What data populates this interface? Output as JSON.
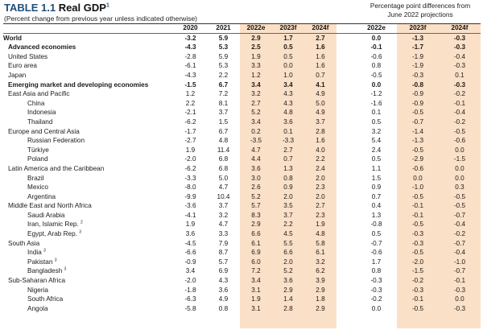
{
  "table": {
    "number": "TABLE 1.1",
    "name": "Real GDP",
    "title_sup": "1",
    "subtitle": "(Percent change from previous year unless indicated otherwise)",
    "right_note_line1": "Percentage point differences from",
    "right_note_line2": "June 2022 projections",
    "columns": [
      "2020",
      "2021",
      "2022e",
      "2023f",
      "2024f"
    ],
    "diff_columns": [
      "2022e",
      "2023f",
      "2024f"
    ]
  },
  "rows": [
    {
      "label": "World",
      "level": 0,
      "bold": true,
      "sup": "",
      "v": [
        "-3.2",
        "5.9",
        "2.9",
        "1.7",
        "2.7"
      ],
      "d": [
        "0.0",
        "-1.3",
        "-0.3"
      ]
    },
    {
      "label": "Advanced economies",
      "level": 1,
      "bold": true,
      "sup": "",
      "v": [
        "-4.3",
        "5.3",
        "2.5",
        "0.5",
        "1.6"
      ],
      "d": [
        "-0.1",
        "-1.7",
        "-0.3"
      ]
    },
    {
      "label": "United States",
      "level": 1,
      "bold": false,
      "sup": "",
      "v": [
        "-2.8",
        "5.9",
        "1.9",
        "0.5",
        "1.6"
      ],
      "d": [
        "-0.6",
        "-1.9",
        "-0.4"
      ]
    },
    {
      "label": "Euro area",
      "level": 1,
      "bold": false,
      "sup": "",
      "v": [
        "-6.1",
        "5.3",
        "3.3",
        "0.0",
        "1.6"
      ],
      "d": [
        "0.8",
        "-1.9",
        "-0.3"
      ]
    },
    {
      "label": "Japan",
      "level": 1,
      "bold": false,
      "sup": "",
      "v": [
        "-4.3",
        "2.2",
        "1.2",
        "1.0",
        "0.7"
      ],
      "d": [
        "-0.5",
        "-0.3",
        "0.1"
      ]
    },
    {
      "label": "Emerging market and developing economies",
      "level": 1,
      "bold": true,
      "sup": "",
      "v": [
        "-1.5",
        "6.7",
        "3.4",
        "3.4",
        "4.1"
      ],
      "d": [
        "0.0",
        "-0.8",
        "-0.3"
      ]
    },
    {
      "label": "East Asia and Pacific",
      "level": 1,
      "bold": false,
      "sup": "",
      "v": [
        "1.2",
        "7.2",
        "3.2",
        "4.3",
        "4.9"
      ],
      "d": [
        "-1.2",
        "-0.9",
        "-0.2"
      ]
    },
    {
      "label": "China",
      "level": 3,
      "bold": false,
      "sup": "",
      "v": [
        "2.2",
        "8.1",
        "2.7",
        "4.3",
        "5.0"
      ],
      "d": [
        "-1.6",
        "-0.9",
        "-0.1"
      ]
    },
    {
      "label": "Indonesia",
      "level": 3,
      "bold": false,
      "sup": "",
      "v": [
        "-2.1",
        "3.7",
        "5.2",
        "4.8",
        "4.9"
      ],
      "d": [
        "0.1",
        "-0.5",
        "-0.4"
      ]
    },
    {
      "label": "Thailand",
      "level": 3,
      "bold": false,
      "sup": "",
      "v": [
        "-6.2",
        "1.5",
        "3.4",
        "3.6",
        "3.7"
      ],
      "d": [
        "0.5",
        "-0.7",
        "-0.2"
      ]
    },
    {
      "label": "Europe and Central Asia",
      "level": 1,
      "bold": false,
      "sup": "",
      "v": [
        "-1.7",
        "6.7",
        "0.2",
        "0.1",
        "2.8"
      ],
      "d": [
        "3.2",
        "-1.4",
        "-0.5"
      ]
    },
    {
      "label": "Russian Federation",
      "level": 3,
      "bold": false,
      "sup": "",
      "v": [
        "-2.7",
        "4.8",
        "-3.5",
        "-3.3",
        "1.6"
      ],
      "d": [
        "5.4",
        "-1.3",
        "-0.6"
      ]
    },
    {
      "label": "Türkiye",
      "level": 3,
      "bold": false,
      "sup": "",
      "v": [
        "1.9",
        "11.4",
        "4.7",
        "2.7",
        "4.0"
      ],
      "d": [
        "2.4",
        "-0.5",
        "0.0"
      ]
    },
    {
      "label": "Poland",
      "level": 3,
      "bold": false,
      "sup": "",
      "v": [
        "-2.0",
        "6.8",
        "4.4",
        "0.7",
        "2.2"
      ],
      "d": [
        "0.5",
        "-2.9",
        "-1.5"
      ]
    },
    {
      "label": "Latin America and the Caribbean",
      "level": 1,
      "bold": false,
      "sup": "",
      "v": [
        "-6.2",
        "6.8",
        "3.6",
        "1.3",
        "2.4"
      ],
      "d": [
        "1.1",
        "-0.6",
        "0.0"
      ]
    },
    {
      "label": "Brazil",
      "level": 3,
      "bold": false,
      "sup": "",
      "v": [
        "-3.3",
        "5.0",
        "3.0",
        "0.8",
        "2.0"
      ],
      "d": [
        "1.5",
        "0.0",
        "0.0"
      ]
    },
    {
      "label": "Mexico",
      "level": 3,
      "bold": false,
      "sup": "",
      "v": [
        "-8.0",
        "4.7",
        "2.6",
        "0.9",
        "2.3"
      ],
      "d": [
        "0.9",
        "-1.0",
        "0.3"
      ]
    },
    {
      "label": "Argentina",
      "level": 3,
      "bold": false,
      "sup": "",
      "v": [
        "-9.9",
        "10.4",
        "5.2",
        "2.0",
        "2.0"
      ],
      "d": [
        "0.7",
        "-0.5",
        "-0.5"
      ]
    },
    {
      "label": "Middle East and North Africa",
      "level": 1,
      "bold": false,
      "sup": "",
      "v": [
        "-3.6",
        "3.7",
        "5.7",
        "3.5",
        "2.7"
      ],
      "d": [
        "0.4",
        "-0.1",
        "-0.5"
      ]
    },
    {
      "label": "Saudi Arabia",
      "level": 3,
      "bold": false,
      "sup": "",
      "v": [
        "-4.1",
        "3.2",
        "8.3",
        "3.7",
        "2.3"
      ],
      "d": [
        "1.3",
        "-0.1",
        "-0.7"
      ]
    },
    {
      "label": "Iran, Islamic Rep.",
      "level": 3,
      "bold": false,
      "sup": "2",
      "v": [
        "1.9",
        "4.7",
        "2.9",
        "2.2",
        "1.9"
      ],
      "d": [
        "-0.8",
        "-0.5",
        "-0.4"
      ]
    },
    {
      "label": "Egypt, Arab Rep.",
      "level": 3,
      "bold": false,
      "sup": "3",
      "v": [
        "3.6",
        "3.3",
        "6.6",
        "4.5",
        "4.8"
      ],
      "d": [
        "0.5",
        "-0.3",
        "-0.2"
      ]
    },
    {
      "label": "South Asia",
      "level": 1,
      "bold": false,
      "sup": "",
      "v": [
        "-4.5",
        "7.9",
        "6.1",
        "5.5",
        "5.8"
      ],
      "d": [
        "-0.7",
        "-0.3",
        "-0.7"
      ]
    },
    {
      "label": "India",
      "level": 3,
      "bold": false,
      "sup": "3",
      "v": [
        "-6.6",
        "8.7",
        "6.9",
        "6.6",
        "6.1"
      ],
      "d": [
        "-0.6",
        "-0.5",
        "-0.4"
      ]
    },
    {
      "label": "Pakistan",
      "level": 3,
      "bold": false,
      "sup": "3",
      "v": [
        "-0.9",
        "5.7",
        "6.0",
        "2.0",
        "3.2"
      ],
      "d": [
        "1.7",
        "-2.0",
        "-1.0"
      ]
    },
    {
      "label": "Bangladesh",
      "level": 3,
      "bold": false,
      "sup": "3",
      "v": [
        "3.4",
        "6.9",
        "7.2",
        "5.2",
        "6.2"
      ],
      "d": [
        "0.8",
        "-1.5",
        "-0.7"
      ]
    },
    {
      "label": "Sub-Saharan Africa",
      "level": 1,
      "bold": false,
      "sup": "",
      "v": [
        "-2.0",
        "4.3",
        "3.4",
        "3.6",
        "3.9"
      ],
      "d": [
        "-0.3",
        "-0.2",
        "-0.1"
      ]
    },
    {
      "label": "Nigeria",
      "level": 3,
      "bold": false,
      "sup": "",
      "v": [
        "-1.8",
        "3.6",
        "3.1",
        "2.9",
        "2.9"
      ],
      "d": [
        "-0.3",
        "-0.3",
        "-0.3"
      ]
    },
    {
      "label": "South Africa",
      "level": 3,
      "bold": false,
      "sup": "",
      "v": [
        "-6.3",
        "4.9",
        "1.9",
        "1.4",
        "1.8"
      ],
      "d": [
        "-0.2",
        "-0.1",
        "0.0"
      ]
    },
    {
      "label": "Angola",
      "level": 3,
      "bold": false,
      "sup": "",
      "v": [
        "-5.8",
        "0.8",
        "3.1",
        "2.8",
        "2.9"
      ],
      "d": [
        "0.0",
        "-0.5",
        "-0.3"
      ]
    }
  ],
  "colors": {
    "accent": "#1f4e79",
    "shade": "#fbe0c8"
  }
}
